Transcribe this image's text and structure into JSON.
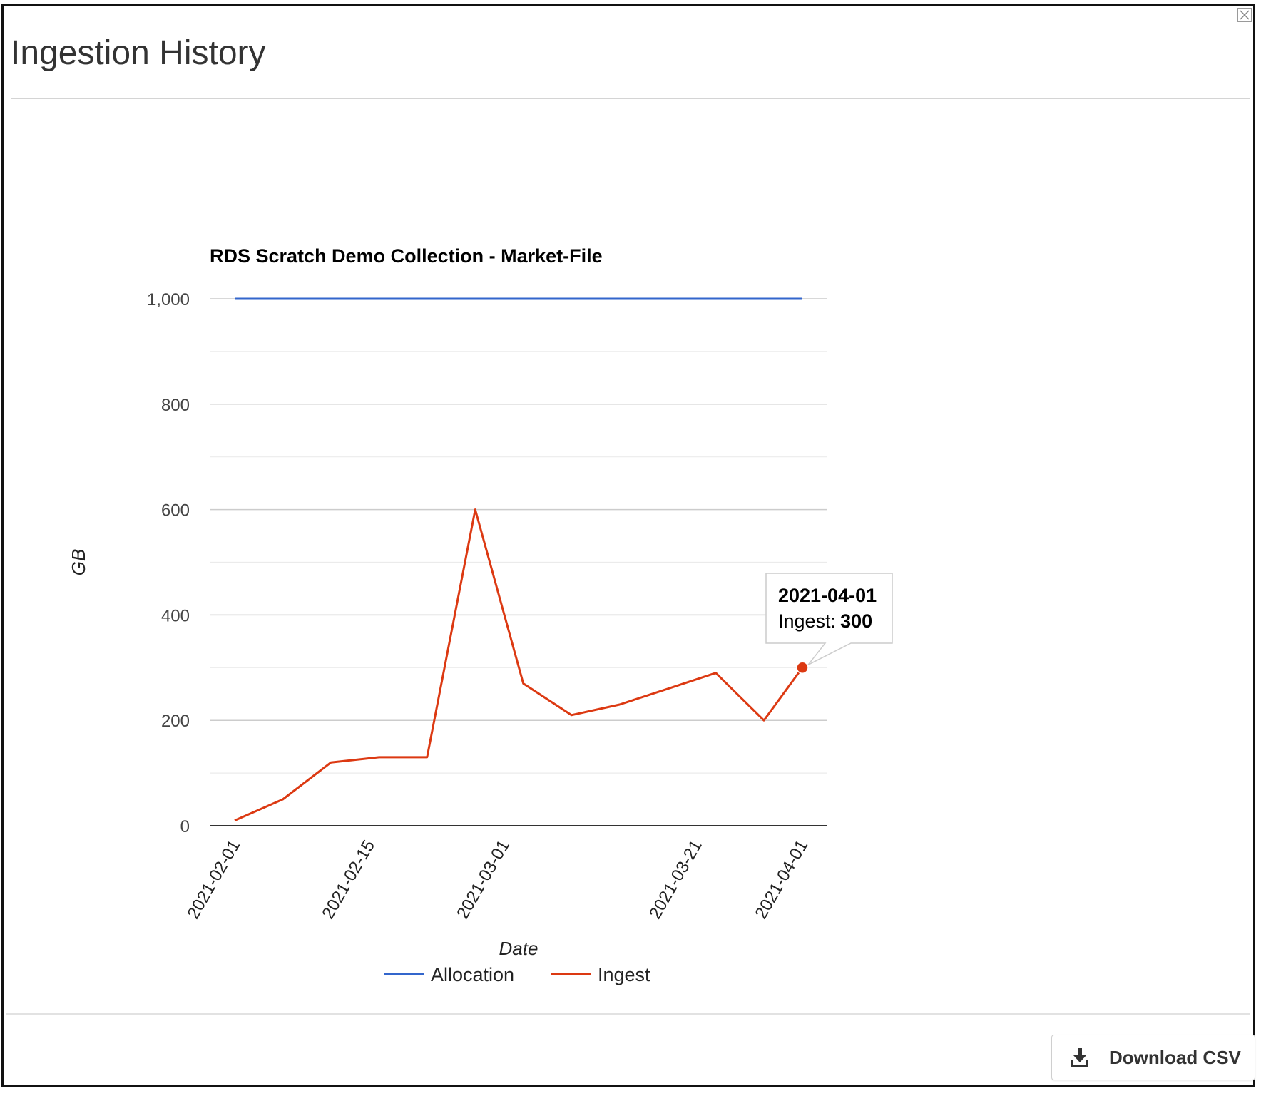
{
  "modal": {
    "title": "Ingestion History",
    "close_icon": "close-icon"
  },
  "footer": {
    "download_label": "Download CSV",
    "download_icon": "download-icon"
  },
  "chart_data": {
    "type": "line",
    "title": "RDS Scratch Demo Collection - Market-File",
    "xlabel": "Date",
    "ylabel": "GB",
    "ylim": [
      0,
      1000
    ],
    "y_ticks": [
      "0",
      "200",
      "400",
      "600",
      "800",
      "1,000"
    ],
    "y_tick_values": [
      0,
      200,
      400,
      600,
      800,
      1000
    ],
    "x_ticks": [
      "2021-02-01",
      "2021-02-15",
      "2021-03-01",
      "2021-03-21",
      "2021-04-01"
    ],
    "grid": true,
    "legend_position": "bottom",
    "series": [
      {
        "name": "Allocation",
        "color": "#3366cc",
        "x": [
          "2021-02-01",
          "2021-04-01"
        ],
        "values": [
          1000,
          1000
        ]
      },
      {
        "name": "Ingest",
        "color": "#dc3912",
        "x": [
          "2021-02-01",
          "2021-02-06",
          "2021-02-11",
          "2021-02-16",
          "2021-02-21",
          "2021-02-26",
          "2021-03-03",
          "2021-03-08",
          "2021-03-13",
          "2021-03-18",
          "2021-03-23",
          "2021-03-28",
          "2021-04-01"
        ],
        "values": [
          10,
          50,
          120,
          130,
          130,
          600,
          270,
          210,
          230,
          260,
          290,
          200,
          300
        ]
      }
    ],
    "tooltip": {
      "date": "2021-04-01",
      "label": "Ingest:",
      "value": "300"
    }
  }
}
